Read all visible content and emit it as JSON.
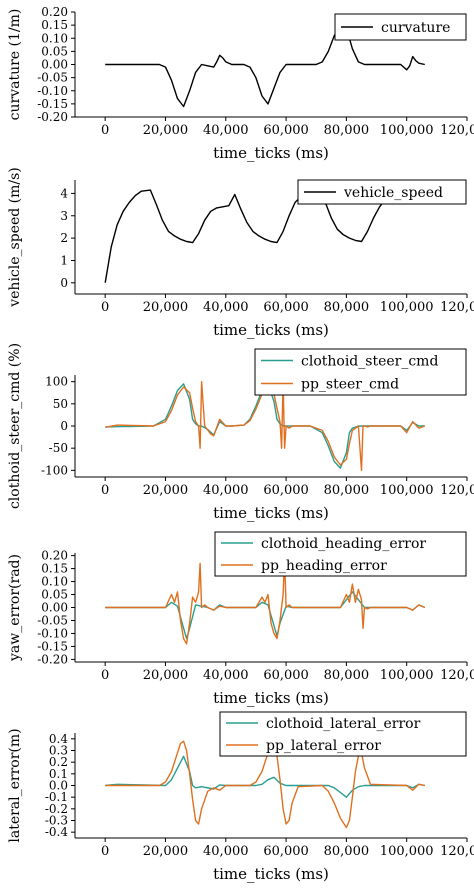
{
  "x_tick_labels": [
    "0",
    "20,000",
    "40,000",
    "60,000",
    "80,000",
    "100,000",
    "120,000"
  ],
  "colors": {
    "black": "#000000",
    "clothoid": "#2a9d8f",
    "pp": "#e07020"
  },
  "chart_data": [
    {
      "type": "line",
      "xlabel": "time_ticks (ms)",
      "ylabel": "curvature (1/m)",
      "xlim": [
        -10000,
        120000
      ],
      "ylim": [
        -0.2,
        0.2
      ],
      "yticks": [
        "-0.20",
        "-0.15",
        "-0.10",
        "-0.05",
        "0.00",
        "0.05",
        "0.10",
        "0.15",
        "0.20"
      ],
      "legend": "top-right",
      "series": [
        {
          "name": "curvature",
          "color": "#000000",
          "x": [
            0,
            16000,
            18000,
            20000,
            22000,
            24000,
            26000,
            28000,
            30000,
            32000,
            34000,
            36000,
            37000,
            38000,
            39000,
            40000,
            42000,
            44000,
            46000,
            48000,
            50000,
            52000,
            54000,
            56000,
            58000,
            60000,
            62000,
            70000,
            72000,
            74000,
            76000,
            78000,
            79000,
            80000,
            82000,
            84000,
            86000,
            88000,
            90000,
            98000,
            100000,
            101000,
            102000,
            103000,
            104000,
            106000
          ],
          "y": [
            0,
            0,
            0,
            -0.01,
            -0.06,
            -0.13,
            -0.16,
            -0.1,
            -0.03,
            0,
            -0.005,
            -0.01,
            0.01,
            0.035,
            0.025,
            0.01,
            0,
            0,
            0,
            -0.01,
            -0.05,
            -0.12,
            -0.15,
            -0.09,
            -0.03,
            0,
            0,
            0,
            0.01,
            0.05,
            0.11,
            0.15,
            0.155,
            0.14,
            0.06,
            0.01,
            0,
            0,
            0,
            0,
            -0.02,
            -0.005,
            0.03,
            0.015,
            0.005,
            0
          ]
        }
      ]
    },
    {
      "type": "line",
      "xlabel": "time_ticks (ms)",
      "ylabel": "vehicle_speed (m/s)",
      "xlim": [
        -10000,
        120000
      ],
      "ylim": [
        -0.5,
        4.6
      ],
      "yticks": [
        "0",
        "1",
        "2",
        "3",
        "4"
      ],
      "legend": "top-right",
      "series": [
        {
          "name": "vehicle_speed",
          "color": "#000000",
          "x": [
            0,
            2000,
            4000,
            6000,
            8000,
            10000,
            12000,
            15000,
            17000,
            19000,
            21000,
            23000,
            25000,
            27000,
            29000,
            31000,
            33000,
            35000,
            37000,
            39000,
            41000,
            43000,
            45000,
            47000,
            49000,
            51000,
            53000,
            55000,
            57000,
            59000,
            61000,
            63000,
            66000,
            69000,
            71000,
            73000,
            75000,
            77000,
            79000,
            81000,
            83000,
            85000,
            87000,
            89000,
            91000,
            93000,
            95000,
            97000,
            100000,
            103000,
            106000
          ],
          "y": [
            0,
            1.6,
            2.6,
            3.2,
            3.6,
            3.9,
            4.1,
            4.15,
            3.5,
            2.8,
            2.3,
            2.1,
            1.95,
            1.85,
            1.8,
            2.2,
            2.8,
            3.2,
            3.35,
            3.4,
            3.45,
            3.95,
            3.3,
            2.7,
            2.3,
            2.1,
            1.95,
            1.85,
            1.8,
            2.3,
            3.0,
            3.6,
            4.0,
            4.15,
            4.2,
            3.6,
            2.9,
            2.4,
            2.15,
            2.0,
            1.9,
            1.85,
            2.3,
            2.9,
            3.4,
            3.75,
            4.0,
            4.05,
            3.8,
            3.6,
            3.6
          ]
        }
      ]
    },
    {
      "type": "line",
      "xlabel": "time_ticks (ms)",
      "ylabel": "clothoid_steer_cmd (%)",
      "xlim": [
        -10000,
        120000
      ],
      "ylim": [
        -115,
        115
      ],
      "yticks": [
        "-100",
        "-50",
        "0",
        "50",
        "100"
      ],
      "legend": "top-right",
      "series": [
        {
          "name": "clothoid_steer_cmd",
          "color": "#2a9d8f",
          "x": [
            0,
            16000,
            20000,
            22000,
            24000,
            26000,
            28000,
            29000,
            30000,
            31000,
            32000,
            34000,
            36000,
            38000,
            40000,
            42000,
            46000,
            48000,
            50000,
            52000,
            54000,
            56000,
            57000,
            58000,
            59000,
            60000,
            62000,
            68000,
            72000,
            74000,
            76000,
            78000,
            80000,
            81000,
            82000,
            84000,
            86000,
            88000,
            98000,
            100000,
            102000,
            104000,
            106000
          ],
          "y": [
            -2,
            0,
            15,
            45,
            80,
            95,
            60,
            15,
            5,
            0,
            0,
            -8,
            -20,
            10,
            0,
            0,
            2,
            15,
            45,
            80,
            95,
            55,
            15,
            5,
            0,
            0,
            0,
            0,
            -15,
            -45,
            -80,
            -95,
            -60,
            -15,
            -5,
            0,
            0,
            0,
            0,
            -10,
            8,
            0,
            0
          ]
        },
        {
          "name": "pp_steer_cmd",
          "color": "#e07020",
          "x": [
            0,
            4000,
            16000,
            20000,
            22000,
            24000,
            26000,
            28000,
            29000,
            30000,
            31000,
            31500,
            32000,
            33000,
            35000,
            36000,
            38000,
            40000,
            42000,
            46000,
            48000,
            50000,
            52000,
            54000,
            56000,
            57000,
            58000,
            58500,
            59000,
            59500,
            60000,
            61000,
            62000,
            68000,
            72000,
            74000,
            76000,
            78000,
            80000,
            81000,
            82000,
            84000,
            85000,
            85500,
            86000,
            87000,
            88000,
            98000,
            100000,
            102000,
            104000,
            106000
          ],
          "y": [
            -3,
            2,
            0,
            10,
            35,
            70,
            88,
            75,
            40,
            10,
            0,
            -50,
            100,
            0,
            -18,
            -22,
            15,
            0,
            0,
            2,
            12,
            38,
            72,
            88,
            72,
            40,
            10,
            -50,
            100,
            -50,
            0,
            -5,
            0,
            0,
            -10,
            -35,
            -70,
            -88,
            -75,
            -40,
            -10,
            0,
            -100,
            0,
            0,
            -2,
            0,
            0,
            -15,
            10,
            -5,
            0
          ]
        }
      ]
    },
    {
      "type": "line",
      "xlabel": "time_ticks (ms)",
      "ylabel": "yaw_error(rad)",
      "xlim": [
        -10000,
        120000
      ],
      "ylim": [
        -0.21,
        0.21
      ],
      "yticks": [
        "-0.20",
        "-0.15",
        "-0.10",
        "-0.05",
        "0.00",
        "0.05",
        "0.10",
        "0.15",
        "0.20"
      ],
      "legend": "top-right",
      "series": [
        {
          "name": "clothoid_heading_error",
          "color": "#2a9d8f",
          "x": [
            0,
            20000,
            22000,
            24000,
            26000,
            27000,
            28000,
            30000,
            32000,
            34000,
            36000,
            38000,
            40000,
            50000,
            52000,
            54000,
            56000,
            57000,
            58000,
            60000,
            62000,
            78000,
            80000,
            82000,
            84000,
            86000,
            88000,
            100000,
            102000,
            104000,
            106000
          ],
          "y": [
            0,
            0,
            0.02,
            0.005,
            -0.08,
            -0.12,
            -0.08,
            0.01,
            0.005,
            0,
            -0.01,
            0.01,
            0,
            0,
            0.02,
            0.01,
            -0.07,
            -0.11,
            -0.06,
            0.005,
            0,
            0,
            0.03,
            0.06,
            0.03,
            0,
            0,
            0,
            -0.01,
            0.01,
            0
          ]
        },
        {
          "name": "pp_heading_error",
          "color": "#e07020",
          "x": [
            0,
            20000,
            22000,
            23000,
            24000,
            25000,
            26000,
            27000,
            28000,
            29000,
            30000,
            31000,
            31500,
            32000,
            33000,
            34000,
            36000,
            38000,
            40000,
            50000,
            52000,
            53000,
            54000,
            55000,
            56000,
            57000,
            58000,
            59000,
            59500,
            60000,
            61000,
            62000,
            78000,
            80000,
            81000,
            82000,
            83000,
            84000,
            85000,
            85500,
            86000,
            87000,
            88000,
            100000,
            102000,
            104000,
            106000
          ],
          "y": [
            0,
            0,
            0.05,
            0.02,
            0.06,
            -0.05,
            -0.12,
            -0.14,
            -0.06,
            0.04,
            0.02,
            0.06,
            0.17,
            0,
            0.01,
            0,
            -0.01,
            0.005,
            0,
            0,
            0.04,
            0.02,
            0.05,
            -0.06,
            -0.1,
            -0.12,
            -0.05,
            0.05,
            0.19,
            0,
            0.01,
            0,
            0,
            0.05,
            0.02,
            0.09,
            0.02,
            0.07,
            0.03,
            -0.08,
            0,
            -0.005,
            0,
            0,
            -0.01,
            0.01,
            0
          ]
        }
      ]
    },
    {
      "type": "line",
      "xlabel": "time_ticks (ms)",
      "ylabel": "lateral_error(m)",
      "xlim": [
        -10000,
        120000
      ],
      "ylim": [
        -0.45,
        0.45
      ],
      "yticks": [
        "-0.4",
        "-0.3",
        "-0.2",
        "-0.1",
        "0.0",
        "0.1",
        "0.2",
        "0.3",
        "0.4"
      ],
      "legend": "top-right",
      "series": [
        {
          "name": "clothoid_lateral_error",
          "color": "#2a9d8f",
          "x": [
            0,
            4000,
            20000,
            22000,
            24000,
            26000,
            28000,
            29000,
            30000,
            32000,
            36000,
            38000,
            40000,
            50000,
            52000,
            54000,
            56000,
            58000,
            60000,
            74000,
            76000,
            78000,
            80000,
            82000,
            84000,
            86000,
            100000,
            102000,
            104000,
            106000
          ],
          "y": [
            0,
            0.01,
            0,
            0.05,
            0.15,
            0.25,
            0.12,
            0,
            -0.02,
            -0.01,
            -0.03,
            0.005,
            0,
            0,
            0.01,
            0.05,
            0.07,
            0.02,
            0,
            0,
            -0.02,
            -0.06,
            -0.1,
            -0.04,
            -0.01,
            0,
            0,
            -0.02,
            0.01,
            0
          ]
        },
        {
          "name": "pp_lateral_error",
          "color": "#e07020",
          "x": [
            0,
            4000,
            18000,
            20000,
            22000,
            24000,
            25000,
            26000,
            27000,
            28000,
            29000,
            30000,
            31000,
            32000,
            34000,
            36000,
            38000,
            40000,
            48000,
            50000,
            52000,
            54000,
            55000,
            56000,
            57000,
            58000,
            59000,
            60000,
            61000,
            62000,
            64000,
            72000,
            74000,
            76000,
            78000,
            80000,
            81000,
            82000,
            83000,
            84000,
            85000,
            86000,
            88000,
            100000,
            102000,
            104000,
            106000
          ],
          "y": [
            0,
            0,
            0,
            0.03,
            0.12,
            0.28,
            0.36,
            0.38,
            0.3,
            0.1,
            -0.12,
            -0.3,
            -0.33,
            -0.2,
            -0.05,
            -0.02,
            -0.04,
            0,
            0,
            0.03,
            0.12,
            0.28,
            0.34,
            0.35,
            0.25,
            0.05,
            -0.2,
            -0.33,
            -0.3,
            -0.15,
            -0.01,
            0,
            -0.05,
            -0.15,
            -0.28,
            -0.36,
            -0.3,
            -0.1,
            0.12,
            0.25,
            0.28,
            0.15,
            0.01,
            0,
            -0.04,
            0.01,
            0
          ]
        }
      ]
    }
  ]
}
